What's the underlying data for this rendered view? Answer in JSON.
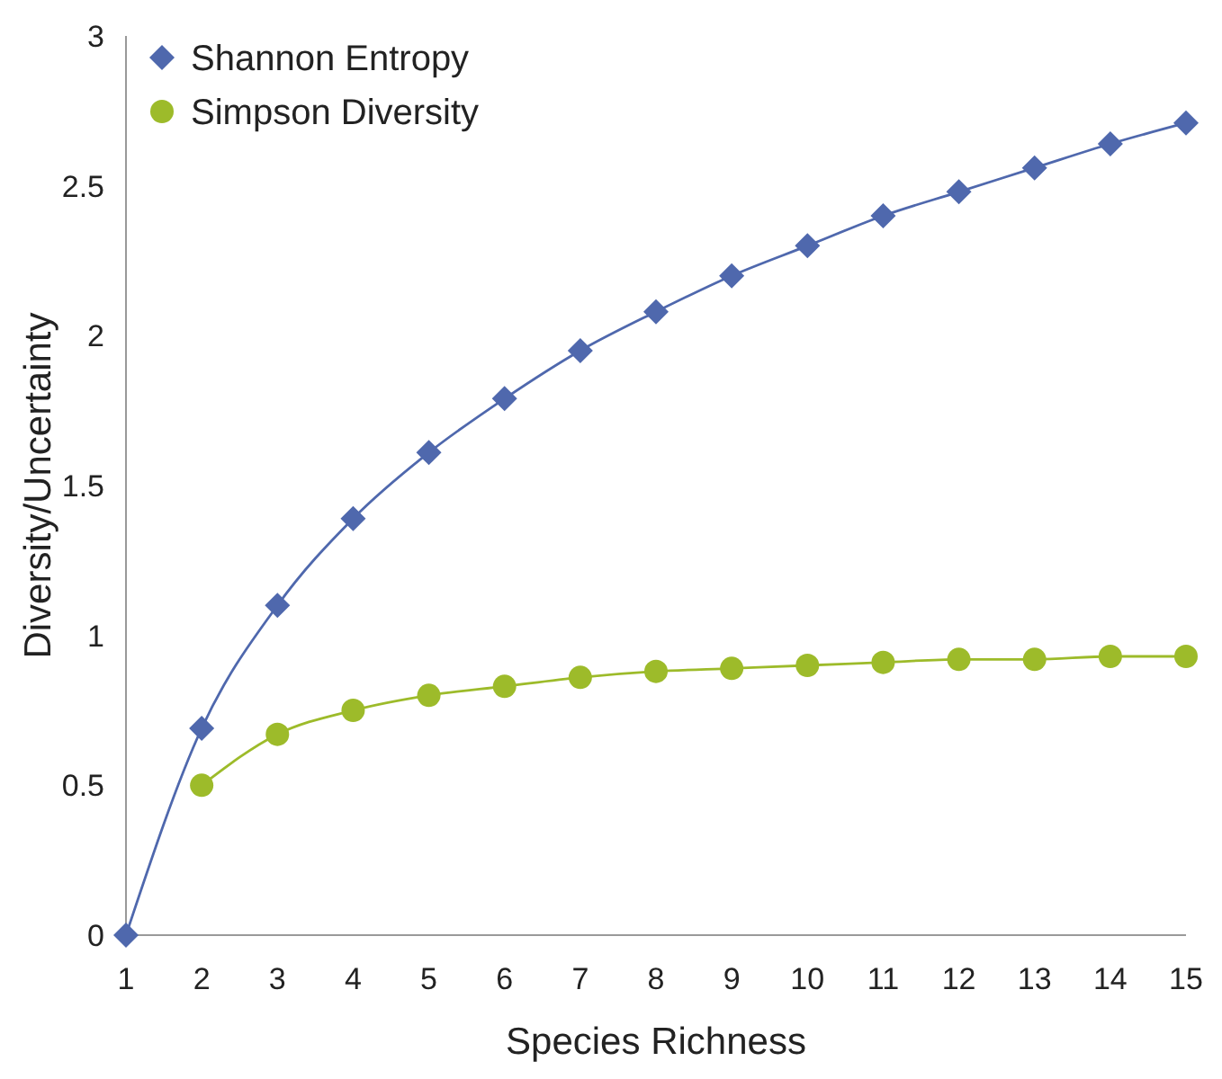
{
  "chart_data": {
    "type": "line",
    "xlabel": "Species Richness",
    "ylabel": "Diversity/Uncertainty",
    "x": [
      1,
      2,
      3,
      4,
      5,
      6,
      7,
      8,
      9,
      10,
      11,
      12,
      13,
      14,
      15
    ],
    "series": [
      {
        "name": "Shannon Entropy",
        "color": "#4f68ad",
        "marker": "diamond",
        "values": [
          0,
          0.69,
          1.1,
          1.39,
          1.61,
          1.79,
          1.95,
          2.08,
          2.2,
          2.3,
          2.4,
          2.48,
          2.56,
          2.64,
          2.71
        ]
      },
      {
        "name": "Simpson Diversity",
        "color": "#9dbb2a",
        "marker": "circle",
        "values": [
          null,
          0.5,
          0.67,
          0.75,
          0.8,
          0.83,
          0.86,
          0.88,
          0.89,
          0.9,
          0.91,
          0.92,
          0.92,
          0.93,
          0.93
        ]
      }
    ],
    "xlim": [
      1,
      15
    ],
    "xticks": [
      1,
      2,
      3,
      4,
      5,
      6,
      7,
      8,
      9,
      10,
      11,
      12,
      13,
      14,
      15
    ],
    "ylim": [
      0,
      3
    ],
    "yticks": [
      0,
      0.5,
      1,
      1.5,
      2,
      2.5,
      3
    ],
    "grid": false,
    "legend": "top left"
  }
}
